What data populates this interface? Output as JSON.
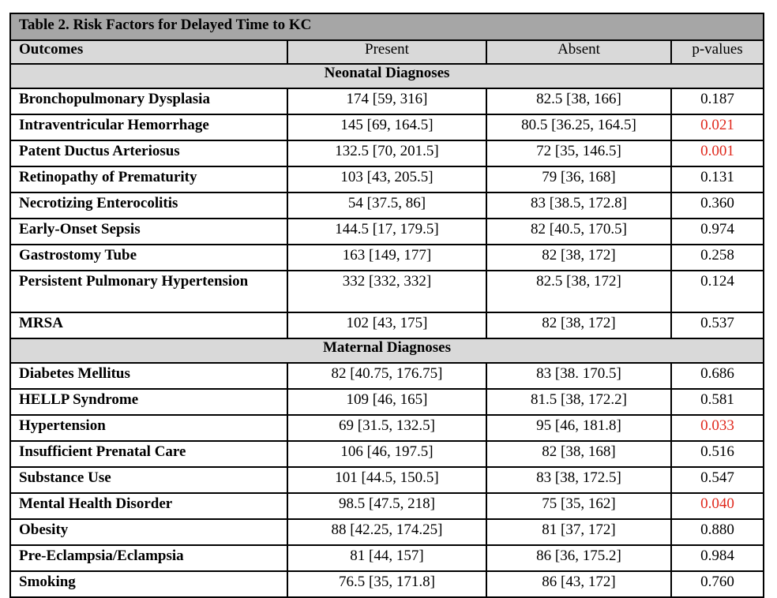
{
  "title": "Table 2. Risk Factors for Delayed Time to KC",
  "headers": [
    "Outcomes",
    "Present",
    "Absent",
    "p-values"
  ],
  "sections": [
    {
      "name": "Neonatal Diagnoses",
      "rows": [
        {
          "outcome": "Bronchopulmonary Dysplasia",
          "present": "174 [59, 316]",
          "absent": "82.5 [38, 166]",
          "p": "0.187",
          "significant": false
        },
        {
          "outcome": "Intraventricular Hemorrhage",
          "present": "145 [69, 164.5]",
          "absent": "80.5 [36.25, 164.5]",
          "p": "0.021",
          "significant": true
        },
        {
          "outcome": "Patent Ductus Arteriosus",
          "present": "132.5 [70, 201.5]",
          "absent": "72 [35, 146.5]",
          "p": "0.001",
          "significant": true
        },
        {
          "outcome": "Retinopathy of Prematurity",
          "present": "103 [43, 205.5]",
          "absent": "79 [36, 168]",
          "p": "0.131",
          "significant": false
        },
        {
          "outcome": "Necrotizing Enterocolitis",
          "present": "54 [37.5, 86]",
          "absent": "83 [38.5, 172.8]",
          "p": "0.360",
          "significant": false
        },
        {
          "outcome": "Early-Onset Sepsis",
          "present": "144.5 [17, 179.5]",
          "absent": "82 [40.5, 170.5]",
          "p": "0.974",
          "significant": false
        },
        {
          "outcome": "Gastrostomy Tube",
          "present": "163 [149, 177]",
          "absent": "82 [38, 172]",
          "p": "0.258",
          "significant": false
        },
        {
          "outcome": "Persistent Pulmonary Hypertension",
          "present": "332 [332, 332]",
          "absent": "82.5 [38, 172]",
          "p": "0.124",
          "significant": false
        },
        {
          "outcome": "MRSA",
          "present": "102 [43, 175]",
          "absent": "82 [38, 172]",
          "p": "0.537",
          "significant": false
        }
      ]
    },
    {
      "name": "Maternal Diagnoses",
      "rows": [
        {
          "outcome": "Diabetes Mellitus",
          "present": "82 [40.75, 176.75]",
          "absent": "83 [38. 170.5]",
          "p": "0.686",
          "significant": false
        },
        {
          "outcome": "HELLP Syndrome",
          "present": "109 [46, 165]",
          "absent": "81.5 [38, 172.2]",
          "p": "0.581",
          "significant": false
        },
        {
          "outcome": "Hypertension",
          "present": "69 [31.5, 132.5]",
          "absent": "95 [46, 181.8]",
          "p": "0.033",
          "significant": true
        },
        {
          "outcome": "Insufficient Prenatal Care",
          "present": "106 [46, 197.5]",
          "absent": "82 [38, 168]",
          "p": "0.516",
          "significant": false
        },
        {
          "outcome": "Substance Use",
          "present": "101 [44.5, 150.5]",
          "absent": "83 [38, 172.5]",
          "p": "0.547",
          "significant": false
        },
        {
          "outcome": "Mental Health Disorder",
          "present": "98.5 [47.5, 218]",
          "absent": "75 [35, 162]",
          "p": "0.040",
          "significant": true
        },
        {
          "outcome": "Obesity",
          "present": "88 [42.25, 174.25]",
          "absent": "81 [37, 172]",
          "p": "0.880",
          "significant": false
        },
        {
          "outcome": "Pre-Eclampsia/Eclampsia",
          "present": "81 [44, 157]",
          "absent": "86 [36, 175.2]",
          "p": "0.984",
          "significant": false
        },
        {
          "outcome": "Smoking",
          "present": "76.5 [35, 171.8]",
          "absent": "86 [43, 172]",
          "p": "0.760",
          "significant": false
        }
      ]
    }
  ],
  "colors": {
    "title_bg": "#a6a6a6",
    "header_bg": "#d9d9d9",
    "section_bg": "#d9d9d9",
    "significant_text": "#e0281c",
    "border": "#000000"
  }
}
